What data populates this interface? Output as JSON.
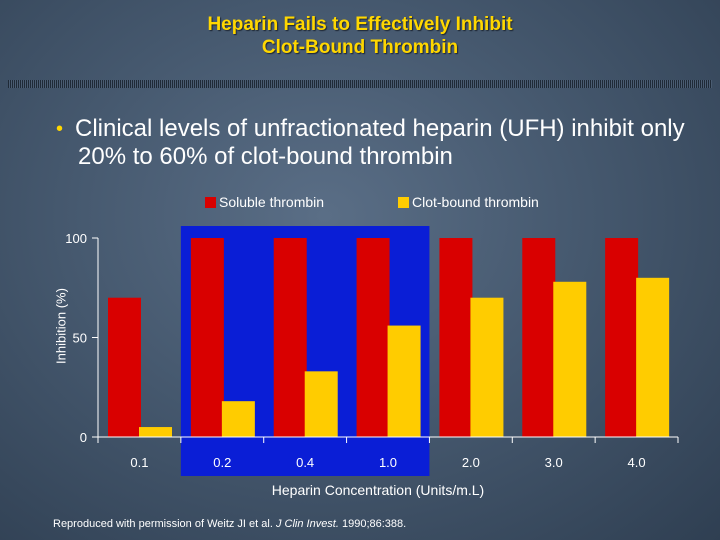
{
  "slide": {
    "title_line1": "Heparin Fails to Effectively Inhibit",
    "title_line2": "Clot-Bound Thrombin",
    "bullet_mark": "•",
    "bullet": "Clinical levels of unfractionated heparin (UFH) inhibit only 20% to 60% of clot-bound thrombin",
    "note_prefix": "Reproduced with permission of Weitz JI et al. ",
    "note_journal": "J Clin Invest.",
    "note_suffix": " 1990;86:388."
  },
  "chart_data": {
    "type": "bar",
    "xlabel": "Heparin Concentration (Units/m.L)",
    "ylabel": "Inhibition (%)",
    "ylim": [
      0,
      100
    ],
    "yticks": [
      0,
      50,
      100
    ],
    "categories": [
      "0.1",
      "0.2",
      "0.4",
      "1.0",
      "2.0",
      "3.0",
      "4.0"
    ],
    "highlight": {
      "categories": [
        "0.2",
        "0.4",
        "1.0"
      ],
      "color": "#0a1ed6"
    },
    "legend_position": "top",
    "series": [
      {
        "name": "Soluble thrombin",
        "color": "#d90000",
        "values": [
          70,
          100,
          100,
          100,
          100,
          100,
          100
        ]
      },
      {
        "name": "Clot-bound thrombin",
        "color": "#ffcc00",
        "values": [
          5,
          18,
          33,
          56,
          70,
          78,
          80
        ]
      }
    ]
  }
}
